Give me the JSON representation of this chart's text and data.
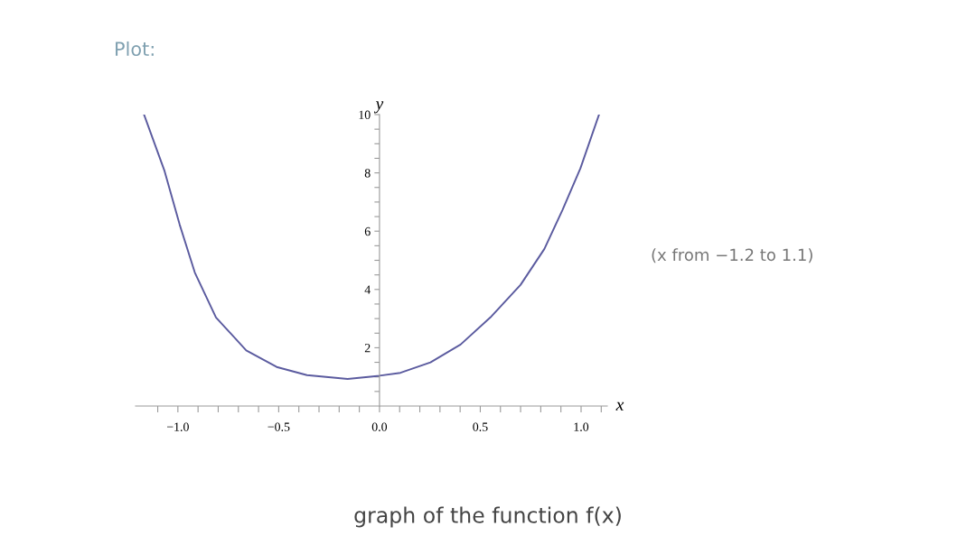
{
  "chart_data": {
    "type": "line",
    "title": "Plot:",
    "xlabel": "x",
    "ylabel": "y",
    "annotations": [
      "(x from −1.2 to 1.1)",
      "graph of the function f(x)"
    ],
    "x": [
      -1.167,
      -1.066,
      -0.991,
      -0.916,
      -0.811,
      -0.661,
      -0.51,
      -0.36,
      -0.158,
      0,
      0.104,
      0.253,
      0.402,
      0.55,
      0.7,
      0.818,
      0.908,
      0.997,
      1.089
    ],
    "series": [
      {
        "color": "#5b5b9f",
        "values": [
          9.98,
          8.06,
          6.22,
          4.58,
          3.04,
          1.91,
          1.34,
          1.06,
          0.93,
          1.04,
          1.14,
          1.5,
          2.11,
          3.04,
          4.16,
          5.39,
          6.73,
          8.16,
          10.0
        ]
      }
    ],
    "xlim": [
      -1.21,
      1.13
    ],
    "ylim": [
      0,
      10
    ],
    "xticks": [
      {
        "value": -1.0,
        "label": "−1.0"
      },
      {
        "value": -0.5,
        "label": "−0.5"
      },
      {
        "value": 0.0,
        "label": "0.0"
      },
      {
        "value": 0.5,
        "label": "0.5"
      },
      {
        "value": 1.0,
        "label": "1.0"
      },
      {
        "value": -1.1,
        "label": null
      },
      {
        "value": -0.9,
        "label": null
      },
      {
        "value": -0.8,
        "label": null
      },
      {
        "value": -0.7,
        "label": null
      },
      {
        "value": -0.6,
        "label": null
      },
      {
        "value": -0.4,
        "label": null
      },
      {
        "value": -0.3,
        "label": null
      },
      {
        "value": -0.2,
        "label": null
      },
      {
        "value": -0.1,
        "label": null
      },
      {
        "value": 0.1,
        "label": null
      },
      {
        "value": 0.2,
        "label": null
      },
      {
        "value": 0.3,
        "label": null
      },
      {
        "value": 0.4,
        "label": null
      },
      {
        "value": 0.6,
        "label": null
      },
      {
        "value": 0.7,
        "label": null
      },
      {
        "value": 0.8,
        "label": null
      },
      {
        "value": 0.9,
        "label": null
      },
      {
        "value": 1.1,
        "label": null
      }
    ],
    "yticks": [
      2,
      4,
      6,
      8,
      10,
      {
        "value": 0.5,
        "label": null
      },
      {
        "value": 1,
        "label": null
      },
      {
        "value": 1.5,
        "label": null
      },
      {
        "value": 2.5,
        "label": null
      },
      {
        "value": 3,
        "label": null
      },
      {
        "value": 3.5,
        "label": null
      },
      {
        "value": 4.5,
        "label": null
      },
      {
        "value": 5,
        "label": null
      },
      {
        "value": 5.5,
        "label": null
      },
      {
        "value": 6.5,
        "label": null
      },
      {
        "value": 7,
        "label": null
      },
      {
        "value": 7.5,
        "label": null
      },
      {
        "value": 8.5,
        "label": null
      },
      {
        "value": 9,
        "label": null
      },
      {
        "value": 9.5,
        "label": null
      }
    ],
    "grid": false,
    "legend": false,
    "marker": "none",
    "line_style": "solid"
  }
}
